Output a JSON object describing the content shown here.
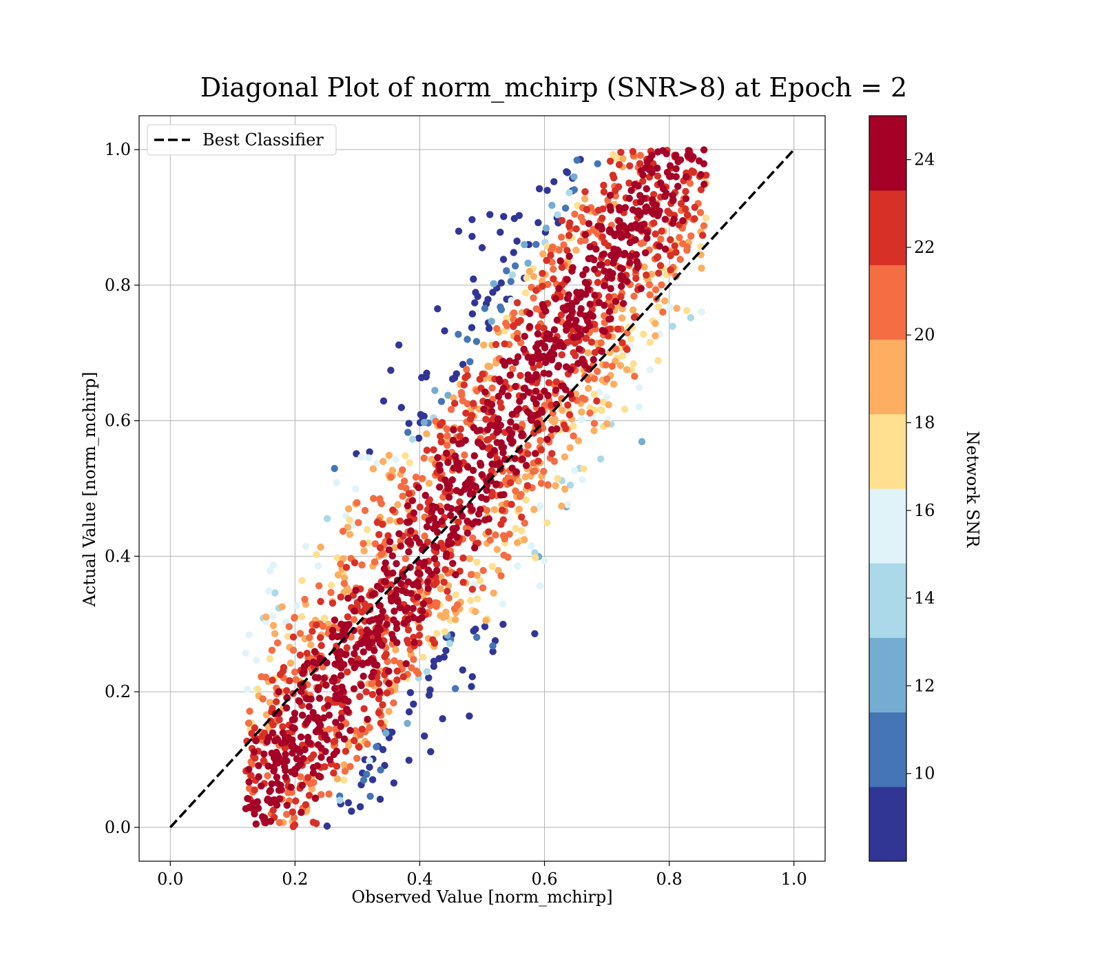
{
  "chart_data": {
    "type": "scatter",
    "title": "Diagonal Plot of norm_mchirp (SNR>8) at Epoch = 2",
    "xlabel": "Observed Value [norm_mchirp]",
    "ylabel": "Actual Value [norm_mchirp]",
    "xlim": [
      -0.05,
      1.05
    ],
    "ylim": [
      -0.05,
      1.05
    ],
    "xticks": [
      "0.0",
      "0.2",
      "0.4",
      "0.6",
      "0.8",
      "1.0"
    ],
    "yticks": [
      "0.0",
      "0.2",
      "0.4",
      "0.6",
      "0.8",
      "1.0"
    ],
    "grid": true,
    "legend": {
      "position": "top-left",
      "entries": [
        {
          "label": "Best Classifier",
          "style": "black dashed line"
        }
      ]
    },
    "reference_line": {
      "label": "Best Classifier",
      "x": [
        0.0,
        1.0
      ],
      "y": [
        0.0,
        1.0
      ],
      "color": "#000000",
      "dash": "dashed"
    },
    "colorbar": {
      "label": "Network SNR",
      "range": [
        8,
        25
      ],
      "tick_values": [
        10,
        12,
        14,
        16,
        18,
        20,
        22,
        24
      ],
      "tick_labels": [
        "10",
        "12",
        "14",
        "16",
        "18",
        "20",
        "22",
        "24"
      ],
      "colormap": "RdYlBu_r (discrete, 10 levels)",
      "colors": [
        "#313695",
        "#4575b4",
        "#74add1",
        "#abd9e9",
        "#e0f3f8",
        "#fee090",
        "#fdae61",
        "#f46d43",
        "#d73027",
        "#a50026"
      ]
    },
    "series": [
      {
        "description_points": "Predictions vs. true normalized chirp mass, colored by Network SNR; dense band along the diagonal dominated by high-SNR (>=24) points, low-SNR points scattered toward upper-left and lower-right of the band.",
        "x_range": [
          0.12,
          0.86
        ],
        "y_range": [
          0.0,
          1.0
        ]
      }
    ]
  }
}
